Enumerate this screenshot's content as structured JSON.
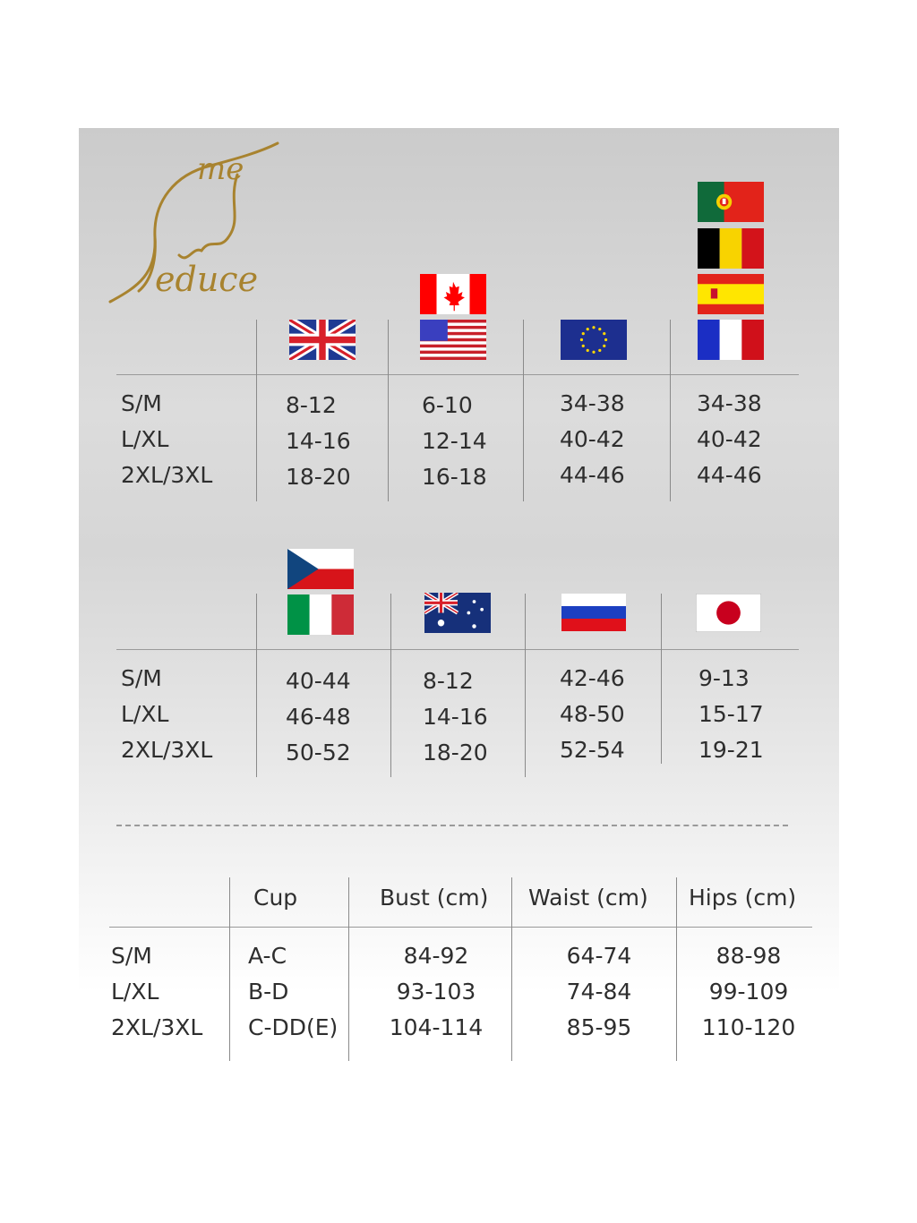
{
  "logo": {
    "text": "Me Seduce",
    "color": "#a8832f"
  },
  "table1": {
    "sizes": [
      "S/M",
      "L/XL",
      "2XL/3XL"
    ],
    "columns": [
      {
        "flags": [
          "uk-flag"
        ],
        "values": [
          "8-12",
          "14-16",
          "18-20"
        ]
      },
      {
        "flags": [
          "canada-flag",
          "usa-flag"
        ],
        "values": [
          "6-10",
          "12-14",
          "16-18"
        ]
      },
      {
        "flags": [
          "eu-flag"
        ],
        "values": [
          "34-38",
          "40-42",
          "44-46"
        ]
      },
      {
        "flags": [
          "portugal-flag",
          "belgium-flag",
          "spain-flag",
          "france-flag"
        ],
        "values": [
          "34-38",
          "40-42",
          "44-46"
        ]
      }
    ]
  },
  "table2": {
    "sizes": [
      "S/M",
      "L/XL",
      "2XL/3XL"
    ],
    "columns": [
      {
        "flags": [
          "czech-flag",
          "italy-flag"
        ],
        "values": [
          "40-44",
          "46-48",
          "50-52"
        ]
      },
      {
        "flags": [
          "australia-flag"
        ],
        "values": [
          "8-12",
          "14-16",
          "18-20"
        ]
      },
      {
        "flags": [
          "russia-flag"
        ],
        "values": [
          "42-46",
          "48-50",
          "52-54"
        ]
      },
      {
        "flags": [
          "japan-flag"
        ],
        "values": [
          "9-13",
          "15-17",
          "19-21"
        ]
      }
    ]
  },
  "table3": {
    "headers": [
      "Cup",
      "Bust (cm)",
      "Waist (cm)",
      "Hips (cm)"
    ],
    "rows": [
      {
        "size": "S/M",
        "cup": "A-C",
        "bust": "84-92",
        "waist": "64-74",
        "hips": "88-98"
      },
      {
        "size": "L/XL",
        "cup": "B-D",
        "bust": "93-103",
        "waist": "74-84",
        "hips": "99-109"
      },
      {
        "size": "2XL/3XL",
        "cup": "C-DD(E)",
        "bust": "104-114",
        "waist": "85-95",
        "hips": "110-120"
      }
    ]
  }
}
